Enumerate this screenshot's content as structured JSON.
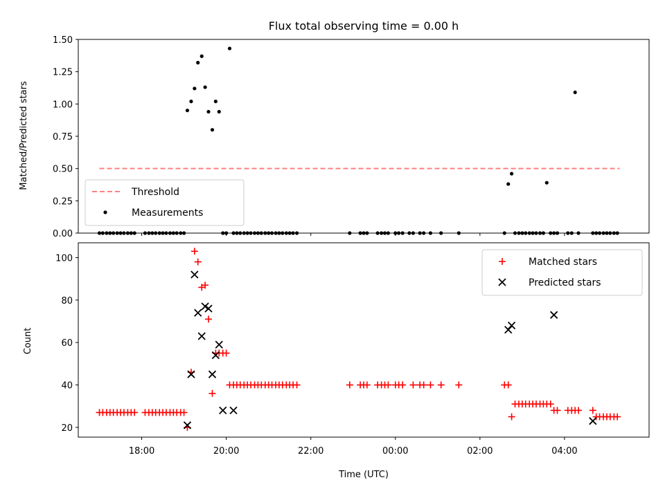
{
  "chart_data": [
    {
      "type": "scatter",
      "title": "Flux total observing time = 0.00 h",
      "xlabel": "",
      "ylabel": "Matched/Predicted stars",
      "xlim": [
        16.5,
        30.0
      ],
      "ylim": [
        0.0,
        1.5
      ],
      "yticks": [
        0.0,
        0.25,
        0.5,
        0.75,
        1.0,
        1.25,
        1.5
      ],
      "ytick_labels": [
        "0.00",
        "0.25",
        "0.50",
        "0.75",
        "1.00",
        "1.25",
        "1.50"
      ],
      "legend": {
        "position": "lower-left",
        "entries": [
          "Threshold",
          "Measurements"
        ]
      },
      "series": [
        {
          "name": "Threshold",
          "kind": "line",
          "style": "dashed",
          "color": "#ff7f7f",
          "x": [
            17.0,
            29.3
          ],
          "y": [
            0.5,
            0.5
          ]
        },
        {
          "name": "Measurements",
          "kind": "scatter",
          "marker": "dot",
          "color": "#000000",
          "x": [
            17.0,
            17.08,
            17.17,
            17.25,
            17.33,
            17.42,
            17.5,
            17.58,
            17.67,
            17.75,
            17.83,
            18.08,
            18.17,
            18.25,
            18.33,
            18.42,
            18.5,
            18.58,
            18.67,
            18.75,
            18.83,
            18.92,
            19.0,
            19.08,
            19.17,
            19.25,
            19.33,
            19.42,
            19.5,
            19.58,
            19.67,
            19.75,
            19.83,
            19.92,
            20.0,
            20.08,
            20.17,
            20.25,
            20.33,
            20.42,
            20.5,
            20.58,
            20.67,
            20.75,
            20.83,
            20.92,
            21.0,
            21.08,
            21.17,
            21.25,
            21.33,
            21.42,
            21.5,
            21.58,
            21.67,
            22.92,
            23.17,
            23.25,
            23.33,
            23.58,
            23.67,
            23.75,
            23.83,
            24.0,
            24.08,
            24.17,
            24.33,
            24.42,
            24.58,
            24.67,
            24.83,
            25.08,
            25.5,
            26.58,
            26.67,
            26.75,
            26.83,
            26.92,
            27.0,
            27.08,
            27.17,
            27.25,
            27.33,
            27.42,
            27.5,
            27.58,
            27.67,
            27.75,
            27.83,
            28.08,
            28.17,
            28.25,
            28.33,
            28.67,
            28.75,
            28.83,
            28.92,
            29.0,
            29.08,
            29.17,
            29.25
          ],
          "y": [
            0,
            0,
            0,
            0,
            0,
            0,
            0,
            0,
            0,
            0,
            0,
            0,
            0,
            0,
            0,
            0,
            0,
            0,
            0,
            0,
            0,
            0,
            0,
            0.95,
            1.02,
            1.12,
            1.32,
            1.37,
            1.13,
            0.94,
            0.8,
            1.02,
            0.94,
            0,
            0,
            1.43,
            0,
            0,
            0,
            0,
            0,
            0,
            0,
            0,
            0,
            0,
            0,
            0,
            0,
            0,
            0,
            0,
            0,
            0,
            0,
            0,
            0,
            0,
            0,
            0,
            0,
            0,
            0,
            0,
            0,
            0,
            0,
            0,
            0,
            0,
            0,
            0,
            0,
            0,
            0.38,
            0.46,
            0,
            0,
            0,
            0,
            0,
            0,
            0,
            0,
            0,
            0.39,
            0,
            0,
            0,
            0,
            0,
            1.09,
            0,
            0,
            0,
            0,
            0,
            0,
            0,
            0,
            0
          ]
        }
      ]
    },
    {
      "type": "scatter",
      "title": "",
      "xlabel": "Time (UTC)",
      "ylabel": "Count",
      "xlim": [
        16.5,
        30.0
      ],
      "ylim": [
        15.4,
        107.0
      ],
      "yticks": [
        20,
        40,
        60,
        80,
        100
      ],
      "ytick_labels": [
        "20",
        "40",
        "60",
        "80",
        "100"
      ],
      "xticks": [
        18,
        20,
        22,
        24,
        26,
        28
      ],
      "xtick_labels": [
        "18:00",
        "20:00",
        "22:00",
        "00:00",
        "02:00",
        "04:00"
      ],
      "legend": {
        "position": "top-right",
        "entries": [
          "Matched stars",
          "Predicted stars"
        ]
      },
      "series": [
        {
          "name": "Matched stars",
          "marker": "plus",
          "color": "#ff0000",
          "x": [
            17.0,
            17.08,
            17.17,
            17.25,
            17.33,
            17.42,
            17.5,
            17.58,
            17.67,
            17.75,
            17.83,
            18.08,
            18.17,
            18.25,
            18.33,
            18.42,
            18.5,
            18.58,
            18.67,
            18.75,
            18.83,
            18.92,
            19.0,
            19.08,
            19.17,
            19.25,
            19.33,
            19.42,
            19.5,
            19.58,
            19.67,
            19.75,
            19.83,
            19.92,
            20.0,
            20.08,
            20.17,
            20.25,
            20.33,
            20.42,
            20.5,
            20.58,
            20.67,
            20.75,
            20.83,
            20.92,
            21.0,
            21.08,
            21.17,
            21.25,
            21.33,
            21.42,
            21.5,
            21.58,
            21.67,
            22.92,
            23.17,
            23.25,
            23.33,
            23.58,
            23.67,
            23.75,
            23.83,
            24.0,
            24.08,
            24.17,
            24.42,
            24.58,
            24.67,
            24.83,
            25.08,
            25.5,
            26.58,
            26.67,
            26.75,
            26.83,
            26.92,
            27.0,
            27.08,
            27.17,
            27.25,
            27.33,
            27.42,
            27.5,
            27.58,
            27.67,
            27.75,
            27.83,
            28.08,
            28.17,
            28.25,
            28.33,
            28.67,
            28.75,
            28.83,
            28.92,
            29.0,
            29.08,
            29.17,
            29.25
          ],
          "y": [
            27,
            27,
            27,
            27,
            27,
            27,
            27,
            27,
            27,
            27,
            27,
            27,
            27,
            27,
            27,
            27,
            27,
            27,
            27,
            27,
            27,
            27,
            27,
            20,
            46,
            103,
            98,
            86,
            87,
            71,
            36,
            55,
            55,
            55,
            55,
            40,
            40,
            40,
            40,
            40,
            40,
            40,
            40,
            40,
            40,
            40,
            40,
            40,
            40,
            40,
            40,
            40,
            40,
            40,
            40,
            40,
            40,
            40,
            40,
            40,
            40,
            40,
            40,
            40,
            40,
            40,
            40,
            40,
            40,
            40,
            40,
            40,
            40,
            40,
            25,
            31,
            31,
            31,
            31,
            31,
            31,
            31,
            31,
            31,
            31,
            31,
            28,
            28,
            28,
            28,
            28,
            28,
            28,
            25,
            25,
            25,
            25,
            25,
            25,
            25
          ]
        },
        {
          "name": "Predicted stars",
          "marker": "x",
          "color": "#000000",
          "x": [
            19.08,
            19.17,
            19.25,
            19.33,
            19.42,
            19.5,
            19.58,
            19.67,
            19.75,
            19.83,
            19.92,
            20.17,
            26.67,
            26.75,
            27.75,
            28.67
          ],
          "y": [
            21,
            45,
            92,
            74,
            63,
            77,
            76,
            45,
            54,
            59,
            28,
            28,
            66,
            68,
            73,
            23
          ]
        }
      ]
    }
  ]
}
